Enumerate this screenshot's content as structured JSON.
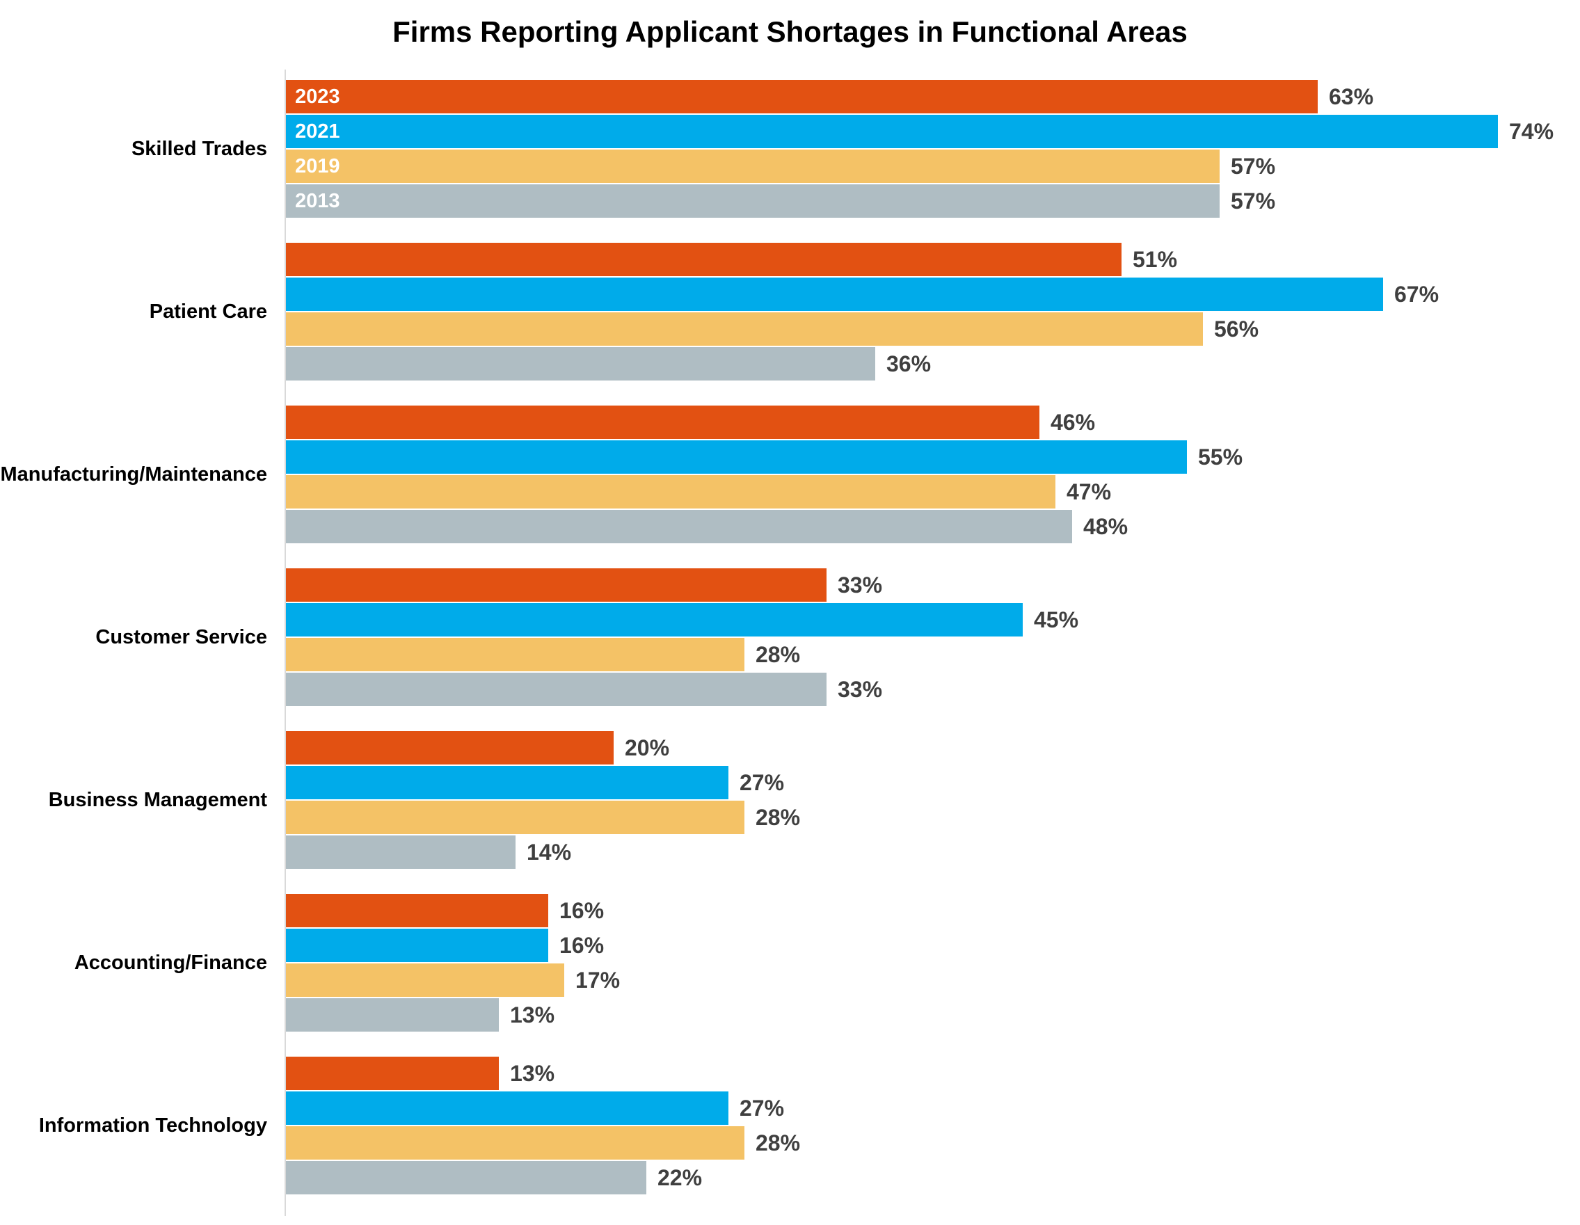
{
  "title": "Firms Reporting Applicant Shortages in Functional Areas",
  "chart_data": {
    "type": "bar",
    "orientation": "horizontal",
    "title": "Firms Reporting Applicant Shortages in Functional Areas",
    "categories": [
      "Skilled Trades",
      "Patient Care",
      "Manufacturing/Maintenance",
      "Customer Service",
      "Business Management",
      "Accounting/Finance",
      "Information Technology"
    ],
    "series": [
      {
        "name": "2023",
        "color": "#e25112",
        "values": [
          63,
          51,
          46,
          33,
          20,
          16,
          13
        ]
      },
      {
        "name": "2021",
        "color": "#00abea",
        "values": [
          74,
          67,
          55,
          45,
          27,
          16,
          27
        ]
      },
      {
        "name": "2019",
        "color": "#f4c266",
        "values": [
          57,
          56,
          47,
          28,
          28,
          17,
          28
        ]
      },
      {
        "name": "2013",
        "color": "#afbdc3",
        "values": [
          57,
          36,
          48,
          33,
          14,
          13,
          22
        ]
      }
    ],
    "value_suffix": "%",
    "xlabel": "",
    "ylabel": "",
    "xlim": [
      0,
      100
    ],
    "grid": false,
    "x_axis_visible": false,
    "legend_position": "year-labels-inside-first-group-bars",
    "value_labels": "outside-end",
    "value_label_color": "#3f3f3f",
    "category_label_color": "#000000",
    "axis_line_color": "#d9d9d9"
  }
}
